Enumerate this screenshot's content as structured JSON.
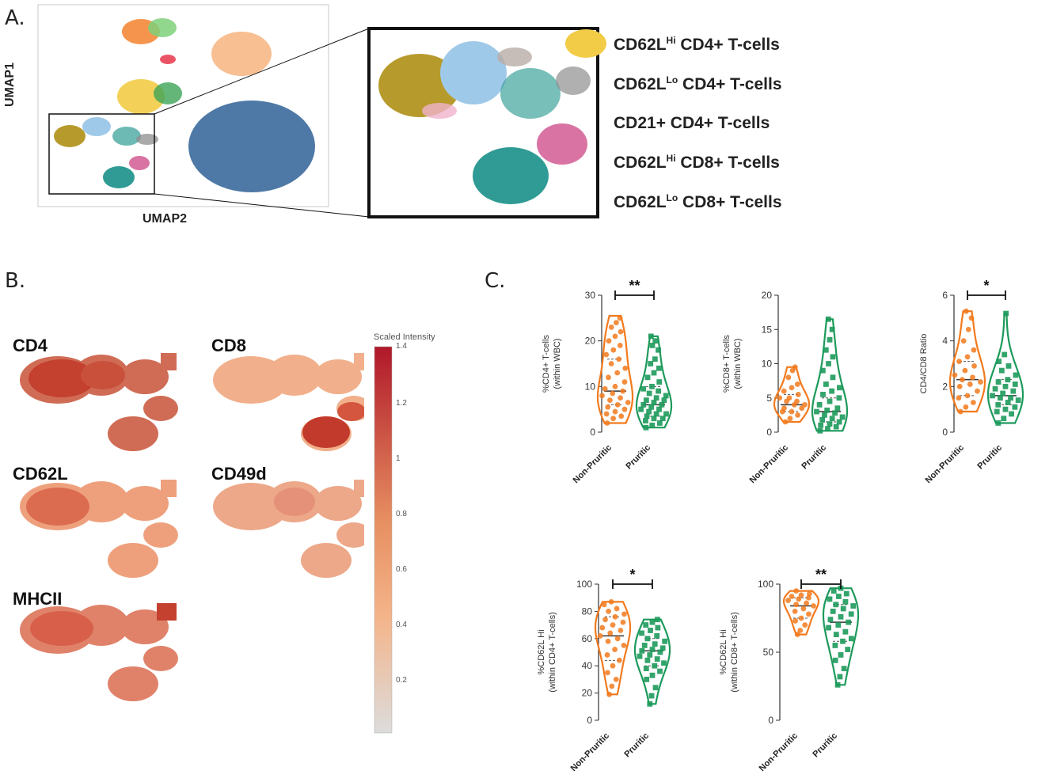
{
  "panels": {
    "a": "A.",
    "b": "B.",
    "c": "C."
  },
  "umap": {
    "xlabel": "UMAP2",
    "ylabel": "UMAP1"
  },
  "legend": [
    {
      "prefix": "CD62L",
      "sup": "Hi",
      "suffix": " CD4+ T-cells",
      "color": "#b79a2c"
    },
    {
      "prefix": "CD62L",
      "sup": "Lo",
      "suffix": " CD4+ T-cells",
      "color": "#9fc9e8"
    },
    {
      "prefix": "CD21+ CD4+ T-cells",
      "sup": "",
      "suffix": "",
      "color": "#b9ada6"
    },
    {
      "prefix": "CD62L",
      "sup": "Hi",
      "suffix": " CD8+ T-cells",
      "color": "#2f9b94"
    },
    {
      "prefix": "CD62L",
      "sup": "Lo",
      "suffix": " CD8+ T-cells",
      "color": "#d973a3"
    }
  ],
  "markers": [
    "CD4",
    "CD8",
    "CD62L",
    "CD49d",
    "MHCII"
  ],
  "colorscale": {
    "title": "Scaled Intensity",
    "ticks": [
      "1.4",
      "1.2",
      "1",
      "0.8",
      "0.6",
      "0.4",
      "0.2"
    ],
    "low_color": "#dcdcdc",
    "mid_color": "#f4a46a",
    "high_color": "#b0182a"
  },
  "colors": {
    "non_pruritic": "#f27a1d",
    "pruritic": "#1d9a5b"
  },
  "chart_data": [
    {
      "type": "violin",
      "ylabel_lines": [
        "%CD4+ T-cells",
        "(within WBC)"
      ],
      "categories": [
        "Non-Pruritic",
        "Pruritic"
      ],
      "ylim": [
        0,
        30
      ],
      "yticks": [
        "0",
        "10",
        "20",
        "30"
      ],
      "significance": "**",
      "series": [
        {
          "name": "Non-Pruritic",
          "median": 9,
          "q1": 6,
          "q3": 16,
          "min": 2,
          "max": 25.5,
          "points": [
            2,
            3,
            3.5,
            4,
            4.5,
            5,
            5.5,
            6,
            6.5,
            7,
            7.5,
            8,
            8.5,
            9,
            9.5,
            10,
            11,
            12,
            13,
            14,
            15,
            16,
            17,
            18,
            19,
            20,
            21,
            22,
            23,
            24,
            25
          ]
        },
        {
          "name": "Pruritic",
          "median": 6,
          "q1": 3.5,
          "q3": 10,
          "min": 1,
          "max": 21,
          "points": [
            1,
            1.5,
            2,
            2.5,
            3,
            3,
            3.5,
            4,
            4,
            4.5,
            5,
            5,
            5.5,
            6,
            6,
            6.5,
            7,
            7,
            7.5,
            8,
            8.5,
            9,
            9.5,
            10,
            11,
            12,
            13,
            14,
            15,
            16,
            18,
            19,
            20,
            21
          ]
        }
      ]
    },
    {
      "type": "violin",
      "ylabel_lines": [
        "%CD8+ T-cells",
        "(within WBC)"
      ],
      "categories": [
        "Non-Pruritic",
        "Pruritic"
      ],
      "ylim": [
        0,
        20
      ],
      "yticks": [
        "0",
        "5",
        "10",
        "15",
        "20"
      ],
      "significance": "",
      "series": [
        {
          "name": "Non-Pruritic",
          "median": 4,
          "q1": 3,
          "q3": 5.5,
          "min": 1.5,
          "max": 9.5,
          "points": [
            1.5,
            2,
            2.5,
            3,
            3,
            3.5,
            3.5,
            4,
            4,
            4.5,
            4.5,
            5,
            5,
            5.5,
            6,
            6.5,
            7,
            8,
            9,
            9.5
          ]
        },
        {
          "name": "Pruritic",
          "median": 3,
          "q1": 1.5,
          "q3": 5,
          "min": 0.2,
          "max": 16.5,
          "points": [
            0.2,
            0.5,
            0.8,
            1,
            1.2,
            1.5,
            1.8,
            2,
            2.2,
            2.5,
            2.8,
            3,
            3.2,
            3.5,
            4,
            4.5,
            5,
            5.5,
            6,
            6.5,
            7,
            8,
            9,
            10,
            11,
            12,
            13.5,
            15,
            16.5
          ]
        }
      ]
    },
    {
      "type": "violin",
      "ylabel_lines": [
        "CD4/CD8 Ratio"
      ],
      "categories": [
        "Non-Pruritic",
        "Pruritic"
      ],
      "ylim": [
        0,
        6
      ],
      "yticks": [
        "0",
        "2",
        "4",
        "6"
      ],
      "significance": "*",
      "series": [
        {
          "name": "Non-Pruritic",
          "median": 2.3,
          "q1": 1.6,
          "q3": 3.1,
          "min": 0.9,
          "max": 5.3,
          "points": [
            0.9,
            1.1,
            1.3,
            1.5,
            1.6,
            1.8,
            2,
            2.1,
            2.2,
            2.3,
            2.4,
            2.5,
            2.7,
            2.9,
            3.1,
            3.3,
            3.6,
            4,
            4.5,
            5,
            5.3
          ]
        },
        {
          "name": "Pruritic",
          "median": 1.6,
          "q1": 1.2,
          "q3": 2.3,
          "min": 0.4,
          "max": 5.2,
          "points": [
            0.4,
            0.6,
            0.8,
            0.9,
            1,
            1.1,
            1.2,
            1.3,
            1.4,
            1.5,
            1.5,
            1.6,
            1.7,
            1.8,
            1.9,
            2,
            2.1,
            2.2,
            2.3,
            2.5,
            2.7,
            2.9,
            3.1,
            3.4,
            5.2
          ]
        }
      ]
    },
    {
      "type": "violin",
      "ylabel_lines": [
        "%CD62L Hi",
        "(within CD4+ T-cells)"
      ],
      "categories": [
        "Non-Pruritic",
        "Pruritic"
      ],
      "ylim": [
        0,
        100
      ],
      "yticks": [
        "0",
        "20",
        "40",
        "60",
        "80",
        "100"
      ],
      "significance": "*",
      "series": [
        {
          "name": "Non-Pruritic",
          "median": 62,
          "q1": 44,
          "q3": 76,
          "min": 19,
          "max": 87,
          "points": [
            19,
            25,
            30,
            35,
            40,
            44,
            48,
            52,
            55,
            58,
            60,
            62,
            64,
            66,
            68,
            70,
            72,
            74,
            76,
            78,
            80,
            82,
            85,
            87
          ]
        },
        {
          "name": "Pruritic",
          "median": 51,
          "q1": 40,
          "q3": 60,
          "min": 12,
          "max": 74,
          "points": [
            12,
            18,
            24,
            30,
            33,
            36,
            38,
            40,
            42,
            44,
            45,
            47,
            48,
            50,
            51,
            52,
            53,
            55,
            56,
            58,
            60,
            62,
            64,
            66,
            68,
            70,
            72,
            74
          ]
        }
      ]
    },
    {
      "type": "violin",
      "ylabel_lines": [
        "%CD62L Hi",
        "(within CD8+ T-cells)"
      ],
      "categories": [
        "Non-Pruritic",
        "Pruritic"
      ],
      "ylim": [
        0,
        100
      ],
      "yticks": [
        "0",
        "50",
        "100"
      ],
      "significance": "**",
      "series": [
        {
          "name": "Non-Pruritic",
          "median": 84,
          "q1": 75,
          "q3": 90,
          "min": 63,
          "max": 95,
          "points": [
            63,
            66,
            70,
            73,
            75,
            78,
            80,
            82,
            84,
            85,
            86,
            88,
            89,
            90,
            91,
            92,
            93,
            95
          ]
        },
        {
          "name": "Pruritic",
          "median": 72,
          "q1": 58,
          "q3": 85,
          "min": 26,
          "max": 97,
          "points": [
            26,
            32,
            38,
            44,
            48,
            52,
            55,
            58,
            60,
            63,
            65,
            68,
            70,
            72,
            74,
            76,
            78,
            80,
            82,
            84,
            85,
            87,
            89,
            91,
            93,
            95,
            97
          ]
        }
      ]
    }
  ]
}
